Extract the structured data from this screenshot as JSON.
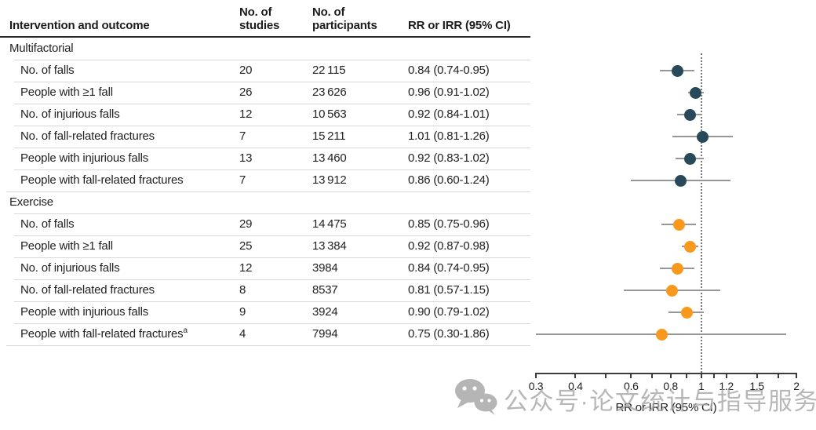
{
  "colors": {
    "multifactorial": "#27495a",
    "exercise": "#f8991d",
    "ci_line": "#979797",
    "axis": "#3c3c3c",
    "separator": "#d8d8d8",
    "header_rule": "#2a2a2a",
    "reference_line": "#767676",
    "watermark": "#b2b2b2"
  },
  "table": {
    "headers": {
      "intervention": "Intervention and outcome",
      "studies": "No. of\nstudies",
      "participants": "No. of\nparticipants",
      "rr": "RR or IRR (95% CI)"
    },
    "rows": [
      {
        "type": "section",
        "label": "Multifactorial"
      },
      {
        "type": "data",
        "group": "multifactorial",
        "label": "No. of falls",
        "studies": "20",
        "participants": "22 115",
        "rr": "0.84 (0.74-0.95)",
        "est": 0.84,
        "lo": 0.74,
        "hi": 0.95
      },
      {
        "type": "data",
        "group": "multifactorial",
        "label": "People with ≥1 fall",
        "studies": "26",
        "participants": "23 626",
        "rr": "0.96 (0.91-1.02)",
        "est": 0.96,
        "lo": 0.91,
        "hi": 1.02
      },
      {
        "type": "data",
        "group": "multifactorial",
        "label": "No. of injurious falls",
        "studies": "12",
        "participants": "10 563",
        "rr": "0.92 (0.84-1.01)",
        "est": 0.92,
        "lo": 0.84,
        "hi": 1.01
      },
      {
        "type": "data",
        "group": "multifactorial",
        "label": "No. of fall-related fractures",
        "studies": "7",
        "participants": "15 211",
        "rr": "1.01 (0.81-1.26)",
        "est": 1.01,
        "lo": 0.81,
        "hi": 1.26
      },
      {
        "type": "data",
        "group": "multifactorial",
        "label": "People with injurious falls",
        "studies": "13",
        "participants": "13 460",
        "rr": "0.92 (0.83-1.02)",
        "est": 0.92,
        "lo": 0.83,
        "hi": 1.02
      },
      {
        "type": "data",
        "group": "multifactorial",
        "label": "People with fall-related fractures",
        "studies": "7",
        "participants": "13 912",
        "rr": "0.86 (0.60-1.24)",
        "est": 0.86,
        "lo": 0.6,
        "hi": 1.24
      },
      {
        "type": "section",
        "label": "Exercise"
      },
      {
        "type": "data",
        "group": "exercise",
        "label": "No. of falls",
        "studies": "29",
        "participants": "14 475",
        "rr": "0.85 (0.75-0.96)",
        "est": 0.85,
        "lo": 0.75,
        "hi": 0.96
      },
      {
        "type": "data",
        "group": "exercise",
        "label": "People with ≥1 fall",
        "studies": "25",
        "participants": "13 384",
        "rr": "0.92 (0.87-0.98)",
        "est": 0.92,
        "lo": 0.87,
        "hi": 0.98
      },
      {
        "type": "data",
        "group": "exercise",
        "label": "No. of injurious falls",
        "studies": "12",
        "participants": "3984",
        "rr": "0.84 (0.74-0.95)",
        "est": 0.84,
        "lo": 0.74,
        "hi": 0.95
      },
      {
        "type": "data",
        "group": "exercise",
        "label": "No. of fall-related fractures",
        "studies": "8",
        "participants": "8537",
        "rr": "0.81 (0.57-1.15)",
        "est": 0.81,
        "lo": 0.57,
        "hi": 1.15
      },
      {
        "type": "data",
        "group": "exercise",
        "label": "People with injurious falls",
        "studies": "9",
        "participants": "3924",
        "rr": "0.90 (0.79-1.02)",
        "est": 0.9,
        "lo": 0.79,
        "hi": 1.02
      },
      {
        "type": "data",
        "group": "exercise",
        "label": "People with fall-related fractures",
        "sup": "a",
        "studies": "4",
        "participants": "7994",
        "rr": "0.75 (0.30-1.86)",
        "est": 0.75,
        "lo": 0.3,
        "hi": 1.86
      }
    ]
  },
  "chart_data": {
    "type": "scatter",
    "subtype": "forest-plot",
    "xlabel": "RR or IRR (95% CI)",
    "x_scale": "log",
    "xlim": [
      0.3,
      2
    ],
    "x_ticks_labeled": [
      0.3,
      0.4,
      0.6,
      0.8,
      1,
      1.2,
      1.5,
      2
    ],
    "x_tick_labels": [
      "0.3",
      "0.4",
      "0.6",
      "0.8",
      "1",
      "1.2",
      "1.5",
      "2"
    ],
    "x_ticks_minor": [
      0.5,
      0.7,
      0.9,
      1.1,
      1.75
    ],
    "reference_line_x": 1,
    "grid": false,
    "legend": "none",
    "series": [
      {
        "name": "Multifactorial",
        "marker": "circle",
        "color": "#27495a",
        "points": [
          {
            "label": "No. of falls",
            "x": 0.84,
            "ci": [
              0.74,
              0.95
            ]
          },
          {
            "label": "People with ≥1 fall",
            "x": 0.96,
            "ci": [
              0.91,
              1.02
            ]
          },
          {
            "label": "No. of injurious falls",
            "x": 0.92,
            "ci": [
              0.84,
              1.01
            ]
          },
          {
            "label": "No. of fall-related fractures",
            "x": 1.01,
            "ci": [
              0.81,
              1.26
            ]
          },
          {
            "label": "People with injurious falls",
            "x": 0.92,
            "ci": [
              0.83,
              1.02
            ]
          },
          {
            "label": "People with fall-related fractures",
            "x": 0.86,
            "ci": [
              0.6,
              1.24
            ]
          }
        ]
      },
      {
        "name": "Exercise",
        "marker": "circle",
        "color": "#f8991d",
        "points": [
          {
            "label": "No. of falls",
            "x": 0.85,
            "ci": [
              0.75,
              0.96
            ]
          },
          {
            "label": "People with ≥1 fall",
            "x": 0.92,
            "ci": [
              0.87,
              0.98
            ]
          },
          {
            "label": "No. of injurious falls",
            "x": 0.84,
            "ci": [
              0.74,
              0.95
            ]
          },
          {
            "label": "No. of fall-related fractures",
            "x": 0.81,
            "ci": [
              0.57,
              1.15
            ]
          },
          {
            "label": "People with injurious falls",
            "x": 0.9,
            "ci": [
              0.79,
              1.02
            ]
          },
          {
            "label": "People with fall-related fractures (a)",
            "x": 0.75,
            "ci": [
              0.3,
              1.86
            ]
          }
        ]
      }
    ]
  },
  "watermark": {
    "icon": "wechat-icon",
    "text": "公众号·论文统计与指导服务"
  }
}
